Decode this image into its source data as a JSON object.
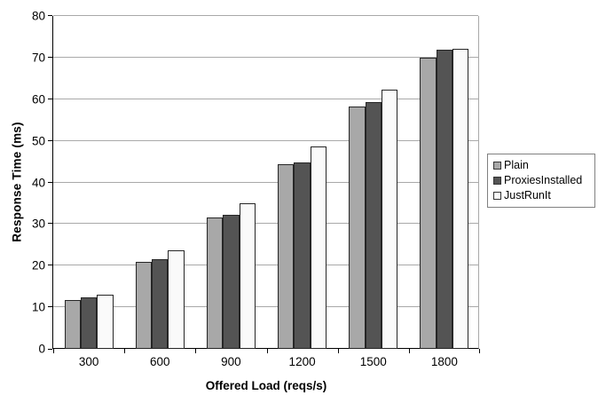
{
  "chart_data": {
    "type": "bar",
    "title": "",
    "xlabel": "Offered Load (reqs/s)",
    "ylabel": "Response Time (ms)",
    "categories": [
      "300",
      "600",
      "900",
      "1200",
      "1500",
      "1800"
    ],
    "series": [
      {
        "name": "Plain",
        "color": "#a8a8a8",
        "values": [
          11.8,
          21.0,
          31.5,
          44.3,
          58.2,
          70.0
        ]
      },
      {
        "name": "ProxiesInstalled",
        "color": "#545454",
        "values": [
          12.4,
          21.5,
          32.2,
          44.7,
          59.3,
          72.0
        ]
      },
      {
        "name": "JustRunIt",
        "color": "#fafafa",
        "values": [
          13.0,
          23.6,
          35.0,
          48.6,
          62.4,
          72.2
        ]
      }
    ],
    "ylim": [
      0,
      80
    ],
    "y_ticks": [
      0,
      10,
      20,
      30,
      40,
      50,
      60,
      70,
      80
    ],
    "grid": true,
    "legend_position": "right",
    "colors": {
      "gridline": "#a9a9a9",
      "axis": "#000000",
      "bar_border": "#262626",
      "legend_border": "#808080",
      "background": "#ffffff"
    }
  }
}
